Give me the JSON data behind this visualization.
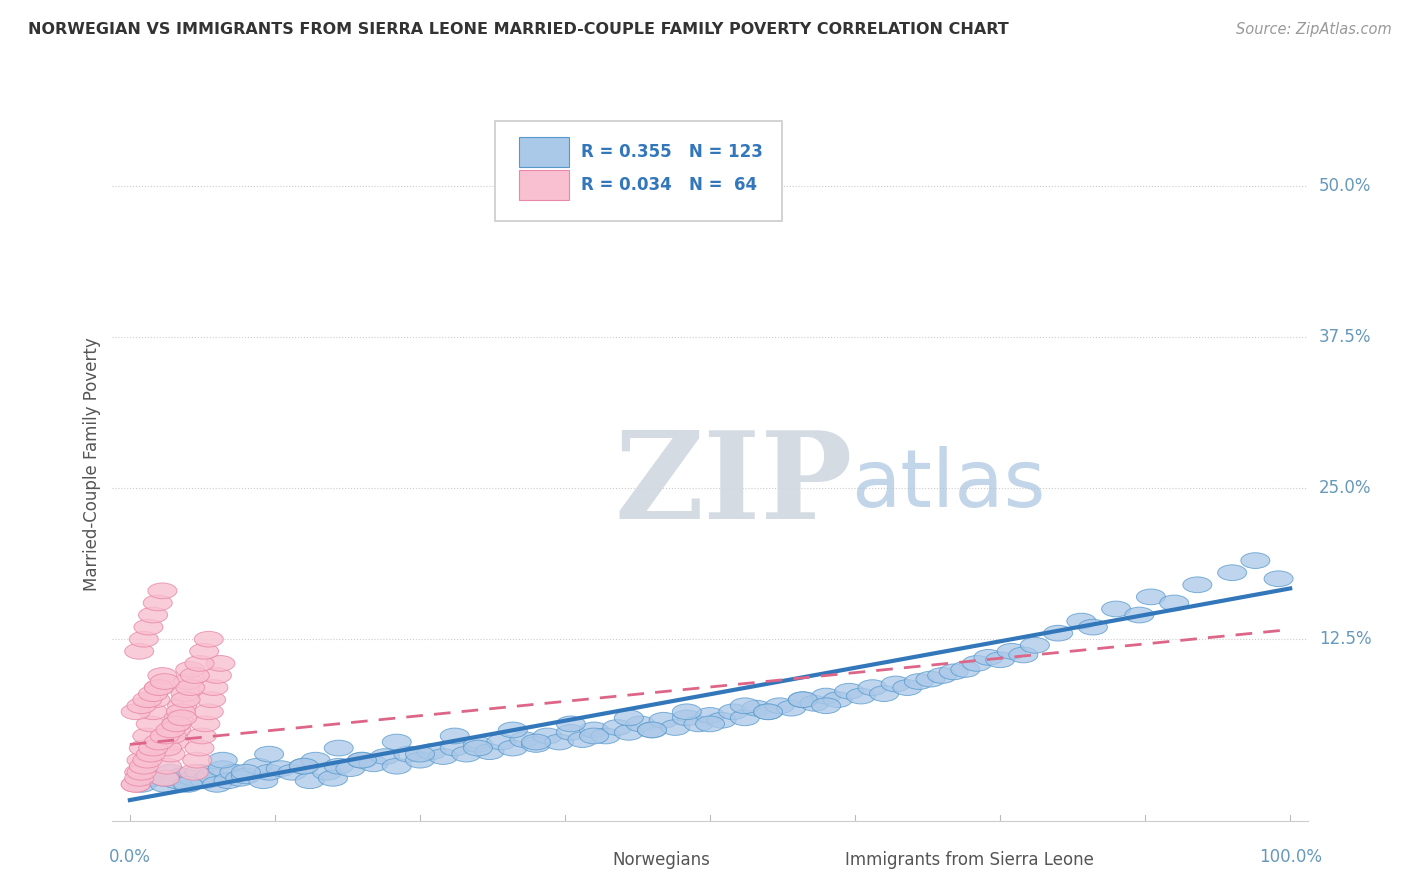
{
  "title": "NORWEGIAN VS IMMIGRANTS FROM SIERRA LEONE MARRIED-COUPLE FAMILY POVERTY CORRELATION CHART",
  "source": "Source: ZipAtlas.com",
  "ylabel": "Married-Couple Family Poverty",
  "watermark_zip": "ZIP",
  "watermark_atlas": "atlas",
  "legend_r_blue": "R = 0.355",
  "legend_n_blue": "N = 123",
  "legend_r_pink": "R = 0.034",
  "legend_n_pink": "N =  64",
  "legend_label_blue": "Norwegians",
  "legend_label_pink": "Immigrants from Sierra Leone",
  "yticks": [
    0.0,
    0.125,
    0.25,
    0.375,
    0.5
  ],
  "ytick_labels": [
    "",
    "12.5%",
    "25.0%",
    "37.5%",
    "50.0%"
  ],
  "xlim": [
    -0.015,
    1.015
  ],
  "ylim": [
    -0.025,
    0.565
  ],
  "blue_color": "#aac8e8",
  "blue_edge_color": "#5599cc",
  "blue_line_color": "#3377bb",
  "pink_color": "#f8c0d0",
  "pink_edge_color": "#e888a8",
  "pink_line_color": "#dd6688",
  "axis_label_color": "#6699bb",
  "grid_color": "#e0e0e0",
  "grid_dot_color": "#cccccc",
  "blue_slope": 0.175,
  "blue_intercept": -0.008,
  "pink_slope": 0.095,
  "pink_intercept": 0.038,
  "blue_scatter_x": [
    0.01,
    0.02,
    0.03,
    0.035,
    0.04,
    0.045,
    0.05,
    0.055,
    0.06,
    0.065,
    0.07,
    0.075,
    0.08,
    0.085,
    0.09,
    0.095,
    0.1,
    0.11,
    0.115,
    0.12,
    0.13,
    0.14,
    0.15,
    0.155,
    0.16,
    0.17,
    0.175,
    0.18,
    0.19,
    0.2,
    0.21,
    0.22,
    0.23,
    0.24,
    0.25,
    0.26,
    0.27,
    0.28,
    0.29,
    0.3,
    0.31,
    0.32,
    0.33,
    0.34,
    0.35,
    0.36,
    0.37,
    0.38,
    0.39,
    0.4,
    0.41,
    0.42,
    0.43,
    0.44,
    0.45,
    0.46,
    0.47,
    0.48,
    0.49,
    0.5,
    0.51,
    0.52,
    0.53,
    0.54,
    0.55,
    0.56,
    0.57,
    0.58,
    0.59,
    0.6,
    0.61,
    0.62,
    0.63,
    0.64,
    0.65,
    0.66,
    0.67,
    0.68,
    0.69,
    0.7,
    0.71,
    0.72,
    0.73,
    0.74,
    0.75,
    0.76,
    0.77,
    0.78,
    0.8,
    0.82,
    0.83,
    0.85,
    0.87,
    0.88,
    0.9,
    0.92,
    0.95,
    0.97,
    0.99,
    0.03,
    0.05,
    0.08,
    0.1,
    0.12,
    0.15,
    0.18,
    0.2,
    0.23,
    0.25,
    0.28,
    0.3,
    0.33,
    0.35,
    0.38,
    0.4,
    0.43,
    0.45,
    0.48,
    0.5,
    0.53,
    0.55,
    0.58,
    0.6
  ],
  "blue_scatter_y": [
    0.005,
    0.01,
    0.005,
    0.015,
    0.008,
    0.012,
    0.006,
    0.01,
    0.015,
    0.008,
    0.012,
    0.005,
    0.018,
    0.008,
    0.015,
    0.01,
    0.012,
    0.02,
    0.008,
    0.015,
    0.018,
    0.015,
    0.02,
    0.008,
    0.025,
    0.015,
    0.01,
    0.02,
    0.018,
    0.025,
    0.022,
    0.028,
    0.02,
    0.03,
    0.025,
    0.032,
    0.028,
    0.035,
    0.03,
    0.038,
    0.032,
    0.04,
    0.035,
    0.042,
    0.038,
    0.045,
    0.04,
    0.048,
    0.042,
    0.05,
    0.045,
    0.052,
    0.048,
    0.055,
    0.05,
    0.058,
    0.052,
    0.06,
    0.055,
    0.062,
    0.058,
    0.065,
    0.06,
    0.068,
    0.065,
    0.07,
    0.068,
    0.075,
    0.072,
    0.078,
    0.075,
    0.082,
    0.078,
    0.085,
    0.08,
    0.088,
    0.085,
    0.09,
    0.092,
    0.095,
    0.098,
    0.1,
    0.105,
    0.11,
    0.108,
    0.115,
    0.112,
    0.12,
    0.13,
    0.14,
    0.135,
    0.15,
    0.145,
    0.16,
    0.155,
    0.17,
    0.18,
    0.19,
    0.175,
    0.01,
    0.005,
    0.025,
    0.015,
    0.03,
    0.02,
    0.035,
    0.025,
    0.04,
    0.03,
    0.045,
    0.035,
    0.05,
    0.04,
    0.055,
    0.045,
    0.06,
    0.05,
    0.065,
    0.055,
    0.07,
    0.065,
    0.075,
    0.07
  ],
  "pink_scatter_x": [
    0.005,
    0.008,
    0.01,
    0.012,
    0.015,
    0.018,
    0.02,
    0.022,
    0.025,
    0.028,
    0.03,
    0.032,
    0.035,
    0.038,
    0.04,
    0.042,
    0.045,
    0.048,
    0.05,
    0.052,
    0.055,
    0.058,
    0.06,
    0.062,
    0.065,
    0.068,
    0.07,
    0.072,
    0.075,
    0.078,
    0.008,
    0.012,
    0.016,
    0.02,
    0.024,
    0.028,
    0.032,
    0.036,
    0.04,
    0.044,
    0.048,
    0.052,
    0.056,
    0.06,
    0.064,
    0.068,
    0.005,
    0.008,
    0.01,
    0.012,
    0.015,
    0.018,
    0.02,
    0.025,
    0.03,
    0.035,
    0.04,
    0.045,
    0.005,
    0.01,
    0.015,
    0.02,
    0.025,
    0.03
  ],
  "pink_scatter_y": [
    0.005,
    0.015,
    0.025,
    0.035,
    0.045,
    0.055,
    0.065,
    0.075,
    0.085,
    0.095,
    0.01,
    0.02,
    0.03,
    0.04,
    0.05,
    0.06,
    0.07,
    0.08,
    0.09,
    0.1,
    0.015,
    0.025,
    0.035,
    0.045,
    0.055,
    0.065,
    0.075,
    0.085,
    0.095,
    0.105,
    0.115,
    0.125,
    0.135,
    0.145,
    0.155,
    0.165,
    0.035,
    0.045,
    0.055,
    0.065,
    0.075,
    0.085,
    0.095,
    0.105,
    0.115,
    0.125,
    0.005,
    0.01,
    0.015,
    0.02,
    0.025,
    0.03,
    0.035,
    0.04,
    0.045,
    0.05,
    0.055,
    0.06,
    0.065,
    0.07,
    0.075,
    0.08,
    0.085,
    0.09
  ]
}
